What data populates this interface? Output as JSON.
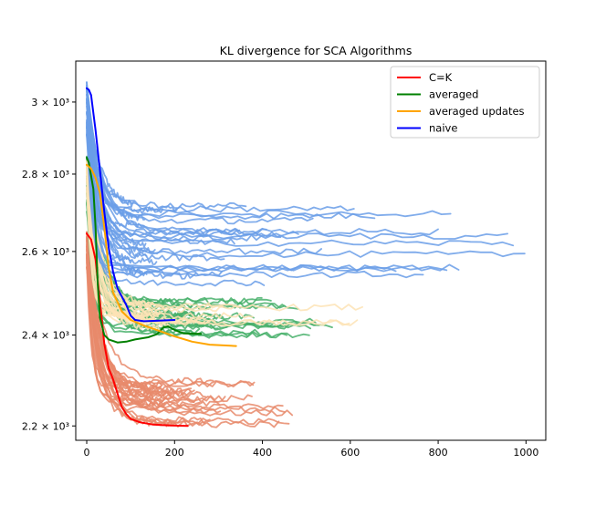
{
  "chart_data": {
    "type": "line",
    "title": "KL divergence for SCA Algorithms",
    "xlabel": "",
    "ylabel": "",
    "xlim": [
      -25,
      1045
    ],
    "ylim": [
      2170,
      3120
    ],
    "y_scale": "log",
    "grid": false,
    "legend_position": "top-right",
    "x_ticks": [
      0,
      200,
      400,
      600,
      800,
      1000
    ],
    "x_tick_labels": [
      "0",
      "200",
      "400",
      "600",
      "800",
      "1000"
    ],
    "y_ticks": [
      2200,
      2400,
      2600,
      2800,
      3000
    ],
    "y_tick_labels": [
      "2.2 × 10³",
      "2.4 × 10³",
      "2.6 × 10³",
      "2.8 × 10³",
      "3 × 10³"
    ],
    "series": [
      {
        "name": "C=K",
        "color": "#ff0000",
        "points": [
          [
            0,
            2645
          ],
          [
            10,
            2630
          ],
          [
            20,
            2580
          ],
          [
            30,
            2480
          ],
          [
            40,
            2380
          ],
          [
            50,
            2325
          ],
          [
            60,
            2300
          ],
          [
            70,
            2270
          ],
          [
            80,
            2240
          ],
          [
            90,
            2225
          ],
          [
            100,
            2215
          ],
          [
            120,
            2208
          ],
          [
            150,
            2203
          ],
          [
            190,
            2201
          ],
          [
            230,
            2200
          ]
        ]
      },
      {
        "name": "averaged",
        "color": "#008000",
        "points": [
          [
            0,
            2845
          ],
          [
            5,
            2830
          ],
          [
            15,
            2760
          ],
          [
            20,
            2660
          ],
          [
            25,
            2520
          ],
          [
            30,
            2440
          ],
          [
            40,
            2400
          ],
          [
            50,
            2390
          ],
          [
            70,
            2383
          ],
          [
            90,
            2385
          ],
          [
            110,
            2390
          ],
          [
            140,
            2395
          ],
          [
            160,
            2402
          ],
          [
            175,
            2418
          ],
          [
            185,
            2420
          ],
          [
            200,
            2412
          ],
          [
            220,
            2404
          ],
          [
            260,
            2403
          ]
        ]
      },
      {
        "name": "averaged updates",
        "color": "#ffa500",
        "points": [
          [
            0,
            2825
          ],
          [
            10,
            2815
          ],
          [
            20,
            2790
          ],
          [
            30,
            2750
          ],
          [
            40,
            2660
          ],
          [
            50,
            2560
          ],
          [
            60,
            2500
          ],
          [
            80,
            2455
          ],
          [
            100,
            2435
          ],
          [
            130,
            2422
          ],
          [
            170,
            2408
          ],
          [
            200,
            2397
          ],
          [
            240,
            2385
          ],
          [
            280,
            2378
          ],
          [
            340,
            2375
          ]
        ]
      },
      {
        "name": "naive",
        "color": "#0000ff",
        "points": [
          [
            0,
            3040
          ],
          [
            5,
            3035
          ],
          [
            10,
            3020
          ],
          [
            20,
            2920
          ],
          [
            30,
            2810
          ],
          [
            40,
            2700
          ],
          [
            50,
            2610
          ],
          [
            60,
            2550
          ],
          [
            70,
            2510
          ],
          [
            80,
            2490
          ],
          [
            90,
            2470
          ],
          [
            100,
            2445
          ],
          [
            110,
            2435
          ],
          [
            130,
            2432
          ],
          [
            160,
            2433
          ],
          [
            200,
            2435
          ]
        ]
      }
    ],
    "background_runs": [
      {
        "group": "C=K",
        "color": "#e8896b",
        "count": 30,
        "start_range": [
          2560,
          2650
        ],
        "end_range": [
          2200,
          2300
        ],
        "length_range": [
          150,
          470
        ]
      },
      {
        "group": "averaged",
        "color": "#48b06b",
        "count": 25,
        "start_range": [
          2700,
          2850
        ],
        "end_range": [
          2400,
          2490
        ],
        "length_range": [
          170,
          580
        ]
      },
      {
        "group": "averaged updates",
        "color": "#fde3b5",
        "count": 20,
        "start_range": [
          2750,
          2840
        ],
        "end_range": [
          2410,
          2470
        ],
        "length_range": [
          150,
          650
        ]
      },
      {
        "group": "naive",
        "color": "#6a9de8",
        "count": 35,
        "start_range": [
          2900,
          3060
        ],
        "end_range": [
          2520,
          2720
        ],
        "length_range": [
          100,
          1000
        ]
      }
    ]
  }
}
